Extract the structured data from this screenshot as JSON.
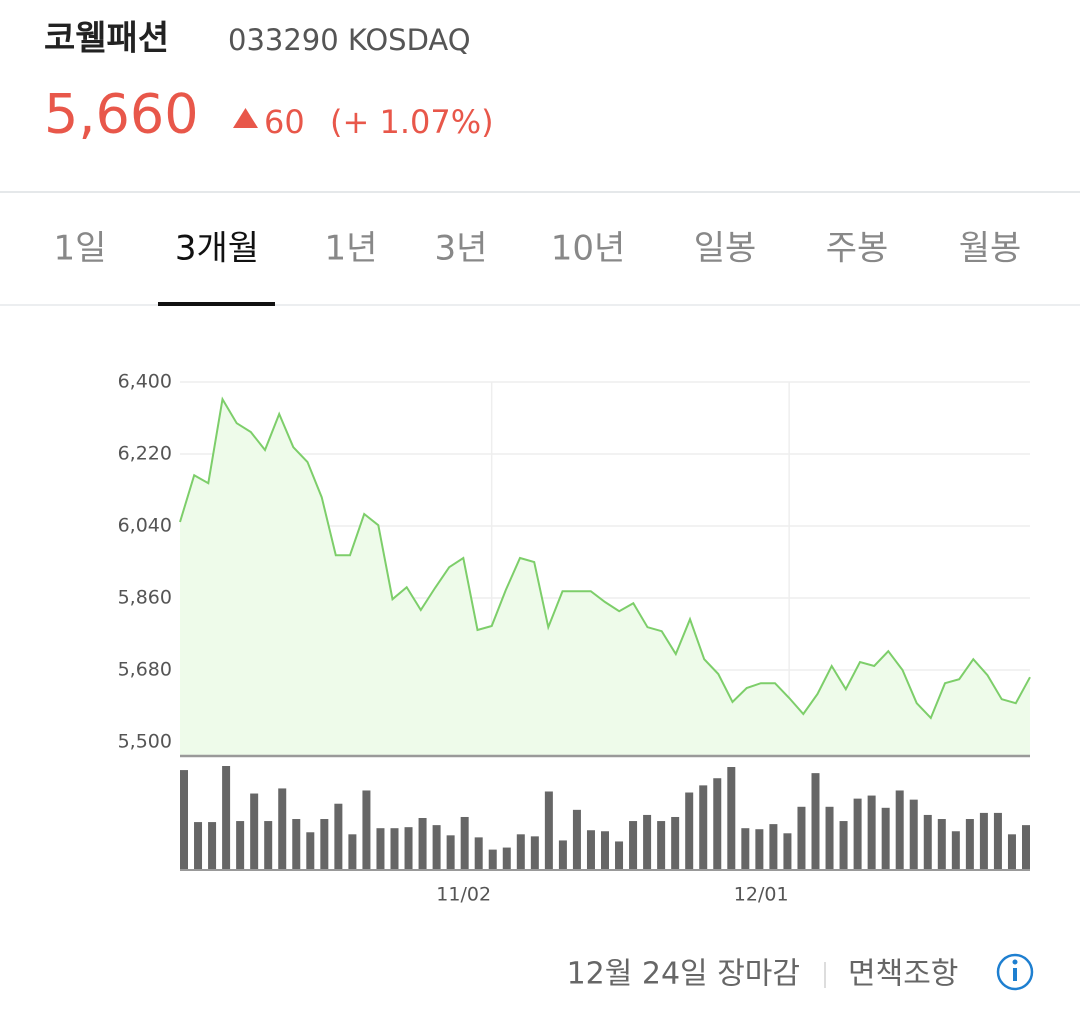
{
  "header": {
    "title": "코웰패션",
    "code": "033290 KOSDAQ",
    "price": "5,660",
    "change": "60",
    "change_pct": "(+ 1.07%)"
  },
  "tabs": {
    "items": [
      "1일",
      "3개월",
      "1년",
      "3년",
      "10년",
      "일봉",
      "주봉",
      "월봉"
    ],
    "active": 1
  },
  "chart_data": [
    {
      "type": "line",
      "color": "#7dce6a",
      "categories": [
        null,
        null,
        null,
        null,
        null,
        null,
        null,
        null,
        null,
        null,
        null,
        null,
        null,
        null,
        null,
        null,
        null,
        null,
        null,
        null,
        null,
        null,
        "11/02",
        null,
        null,
        null,
        null,
        null,
        null,
        null,
        null,
        null,
        null,
        null,
        null,
        null,
        null,
        null,
        null,
        null,
        null,
        null,
        null,
        "12/01",
        null,
        null,
        null,
        null,
        null,
        null,
        null,
        null,
        null,
        null,
        null,
        null,
        null,
        null,
        null,
        null,
        null
      ],
      "values": [
        6050,
        6167,
        6147,
        6357,
        6297,
        6275,
        6230,
        6320,
        6237,
        6200,
        6112,
        5967,
        5967,
        6070,
        6042,
        5857,
        5887,
        5830,
        5885,
        5937,
        5960,
        5780,
        5790,
        5880,
        5960,
        5950,
        5787,
        5877,
        5877,
        5877,
        5850,
        5827,
        5847,
        5787,
        5777,
        5720,
        5807,
        5707,
        5670,
        5600,
        5635,
        5647,
        5647,
        5610,
        5570,
        5620,
        5690,
        5632,
        5700,
        5690,
        5727,
        5680,
        5597,
        5560,
        5647,
        5657,
        5707,
        5667,
        5607,
        5597,
        5662
      ],
      "ylim": [
        5465,
        6400
      ],
      "yticks": [
        {
          "value": 6400,
          "label": "6,400"
        },
        {
          "value": 6220,
          "label": "6,220"
        },
        {
          "value": 6040,
          "label": "6,040"
        },
        {
          "value": 5860,
          "label": "5,860"
        },
        {
          "value": 5680,
          "label": "5,680"
        },
        {
          "value": 5500,
          "label": "5,500"
        }
      ],
      "grid": true
    },
    {
      "type": "bar",
      "color": "#666666",
      "values": [
        98,
        47,
        47,
        102,
        48,
        75,
        48,
        80,
        50,
        37,
        50,
        65,
        35,
        78,
        41,
        41,
        42,
        51,
        44,
        34,
        52,
        32,
        20,
        22,
        35,
        33,
        77,
        29,
        59,
        39,
        38,
        28,
        48,
        54,
        48,
        52,
        76,
        83,
        90,
        101,
        41,
        40,
        45,
        36,
        62,
        95,
        62,
        48,
        70,
        73,
        61,
        78,
        69,
        54,
        50,
        38,
        50,
        56,
        56,
        35,
        44
      ]
    }
  ],
  "footer": {
    "status": "12월 24일 장마감",
    "disclaimer": "면책조항"
  }
}
